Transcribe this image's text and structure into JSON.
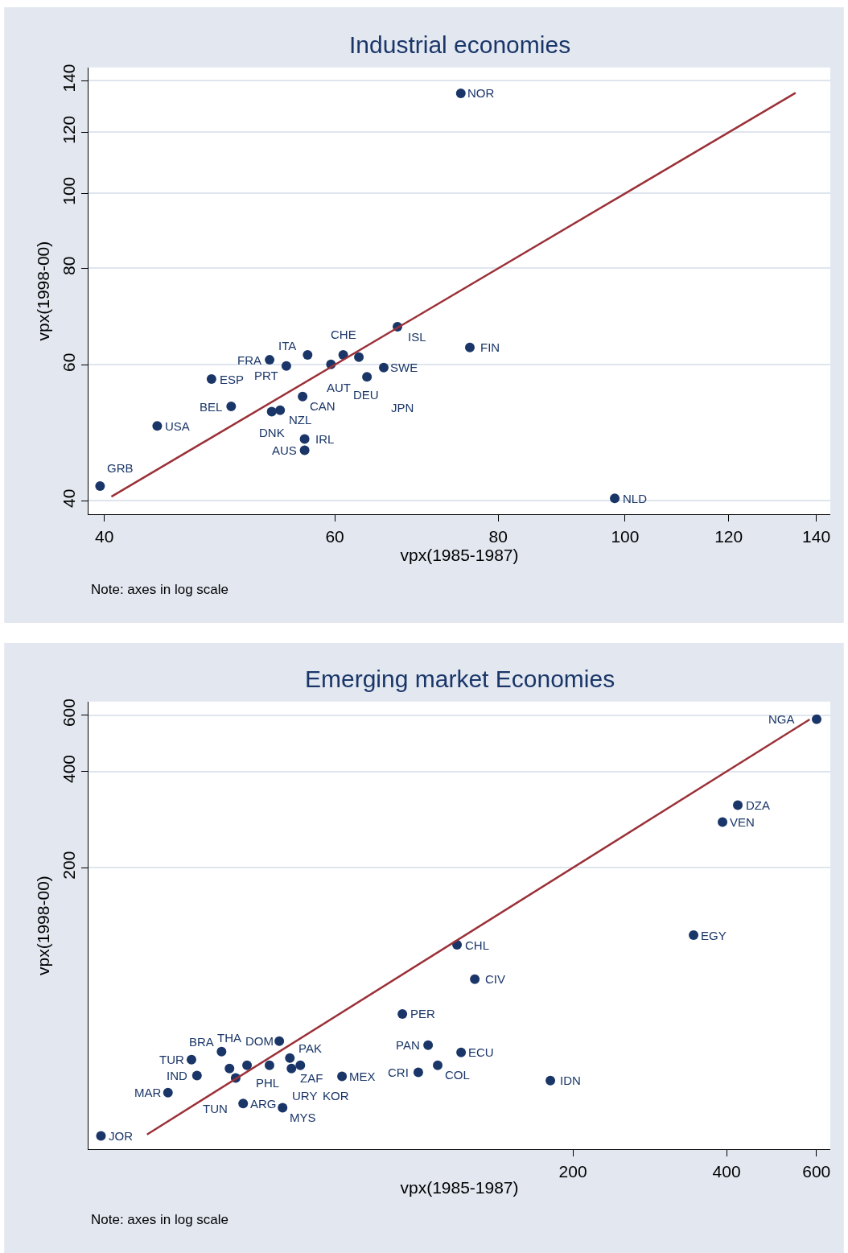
{
  "chart_data": [
    {
      "type": "scatter",
      "title": "Industrial economies",
      "xlabel": "vpx(1985-1987)",
      "ylabel": "vpx(1998-00)",
      "log": "xy",
      "grid": "y",
      "xlim": [
        38.9,
        143.5
      ],
      "ylim": [
        38.4,
        145.6
      ],
      "xticks": [
        40,
        60,
        80,
        100,
        120,
        140
      ],
      "yticks": [
        40,
        60,
        80,
        100,
        120,
        140
      ],
      "series": [
        {
          "color": "#1a3668",
          "marker": "circle",
          "x": [
            74.9,
            67.0,
            76.1,
            57.2,
            60.9,
            62.6,
            53.5,
            55.1,
            59.6,
            65.4,
            63.5,
            48.3,
            56.7,
            50.0,
            54.5,
            53.7,
            43.9,
            56.9,
            56.9,
            39.7,
            98.2
          ],
          "values": [
            134.8,
            67.2,
            63.2,
            61.8,
            61.8,
            61.4,
            60.9,
            59.8,
            60.1,
            59.5,
            57.9,
            57.5,
            54.6,
            53.0,
            52.4,
            52.2,
            50.0,
            48.1,
            46.5,
            41.8,
            40.3
          ]
        },
        {
          "type": "line",
          "color": "#9b3138",
          "x": [
            40.5,
            135
          ],
          "values": [
            40.5,
            135
          ]
        }
      ],
      "annotations": [
        "Note: axes in log scale",
        {
          "text": "NOR",
          "x": 74.9,
          "y": 134.8
        },
        {
          "text": "ISL",
          "x": 67.0,
          "y": 67.2
        },
        {
          "text": "FIN",
          "x": 76.1,
          "y": 63.2
        },
        {
          "text": "ITA",
          "x": 57.2,
          "y": 61.8
        },
        {
          "text": "CHE",
          "x": 60.9,
          "y": 61.8
        },
        {
          "text": "AUT",
          "x": 62.6,
          "y": 61.4
        },
        {
          "text": "FRA",
          "x": 53.5,
          "y": 60.9
        },
        {
          "text": "PRT",
          "x": 55.1,
          "y": 59.8
        },
        {
          "text": "DEU",
          "x": 59.6,
          "y": 60.1
        },
        {
          "text": "SWE",
          "x": 65.4,
          "y": 59.5
        },
        {
          "text": "JPN",
          "x": 63.5,
          "y": 57.9
        },
        {
          "text": "ESP",
          "x": 48.3,
          "y": 57.5
        },
        {
          "text": "CAN",
          "x": 56.7,
          "y": 54.6
        },
        {
          "text": "BEL",
          "x": 50.0,
          "y": 53.0
        },
        {
          "text": "NZL",
          "x": 54.5,
          "y": 52.4
        },
        {
          "text": "DNK",
          "x": 53.7,
          "y": 52.2
        },
        {
          "text": "USA",
          "x": 43.9,
          "y": 50.0
        },
        {
          "text": "IRL",
          "x": 56.9,
          "y": 48.1
        },
        {
          "text": "AUS",
          "x": 56.9,
          "y": 46.5
        },
        {
          "text": "GRB",
          "x": 39.7,
          "y": 41.8
        },
        {
          "text": "NLD",
          "x": 98.2,
          "y": 40.3
        }
      ]
    },
    {
      "type": "scatter",
      "title": "Emerging market Economies",
      "xlabel": "vpx(1985-1987)",
      "ylabel": "vpx(1998-00)",
      "log": "xy",
      "grid": "y",
      "xlim": [
        22.5,
        638.7
      ],
      "ylim": [
        26.3,
        661.8
      ],
      "xticks": [
        200,
        400,
        600
      ],
      "yticks": [
        200,
        400,
        600
      ],
      "series": [
        {
          "color": "#1a3668",
          "marker": "circle",
          "x": [
            600.5,
            420.8,
            392.8,
            344.7,
            118.6,
            128.5,
            92.7,
            104.1,
            120.8,
            108.7,
            99.6,
            180.7,
            70.6,
            53.2,
            55.8,
            35.8,
            41.0,
            42.5,
            46.0,
            50.9,
            56.2,
            58.5,
            36.7,
            43.7,
            32.2,
            45.2,
            54.0,
            23.8
          ],
          "values": [
            583,
            314,
            278,
            123.1,
            114.8,
            89.6,
            69.8,
            55.7,
            52.9,
            48.2,
            45.8,
            43.2,
            44.5,
            57.4,
            50.8,
            50.2,
            53.2,
            47.1,
            48.2,
            48.2,
            47.1,
            48.2,
            44.8,
            44.0,
            39.6,
            36.6,
            35.5,
            29.0
          ]
        },
        {
          "type": "line",
          "color": "#9b3138",
          "x": [
            29.3,
            582
          ],
          "values": [
            29.3,
            582
          ]
        }
      ],
      "annotations": [
        "Note: axes in log scale",
        {
          "text": "NGA",
          "x": 600.5,
          "y": 583
        },
        {
          "text": "DZA",
          "x": 420.8,
          "y": 314
        },
        {
          "text": "VEN",
          "x": 392.8,
          "y": 278
        },
        {
          "text": "EGY",
          "x": 344.7,
          "y": 123.1
        },
        {
          "text": "CHL",
          "x": 118.6,
          "y": 114.8
        },
        {
          "text": "CIV",
          "x": 128.5,
          "y": 89.6
        },
        {
          "text": "PER",
          "x": 92.7,
          "y": 69.8
        },
        {
          "text": "PAN",
          "x": 104.1,
          "y": 55.7
        },
        {
          "text": "ECU",
          "x": 120.8,
          "y": 52.9
        },
        {
          "text": "COL",
          "x": 108.7,
          "y": 48.2
        },
        {
          "text": "CRI",
          "x": 99.6,
          "y": 45.8
        },
        {
          "text": "IDN",
          "x": 180.7,
          "y": 43.2
        },
        {
          "text": "MEX",
          "x": 70.6,
          "y": 44.5
        },
        {
          "text": "DOM",
          "x": 53.2,
          "y": 57.4
        },
        {
          "text": "PAK",
          "x": 55.8,
          "y": 50.8
        },
        {
          "text": "TUR",
          "x": 35.8,
          "y": 50.2
        },
        {
          "text": "BRA",
          "x": 41.0,
          "y": 53.2
        },
        {
          "text": "THA",
          "x": 42.5,
          "y": 47.1
        },
        {
          "text": "PHL",
          "x": 46.0,
          "y": 48.2
        },
        {
          "text": "URY",
          "x": 50.9,
          "y": 48.2
        },
        {
          "text": "ZAF",
          "x": 56.2,
          "y": 47.1
        },
        {
          "text": "KOR",
          "x": 58.5,
          "y": 48.2
        },
        {
          "text": "IND",
          "x": 36.7,
          "y": 44.8
        },
        {
          "text": "TUN",
          "x": 43.7,
          "y": 44.0
        },
        {
          "text": "MAR",
          "x": 32.2,
          "y": 39.6
        },
        {
          "text": "ARG",
          "x": 45.2,
          "y": 36.6
        },
        {
          "text": "MYS",
          "x": 54.0,
          "y": 35.5
        },
        {
          "text": "JOR",
          "x": 23.8,
          "y": 29.0
        }
      ]
    }
  ]
}
